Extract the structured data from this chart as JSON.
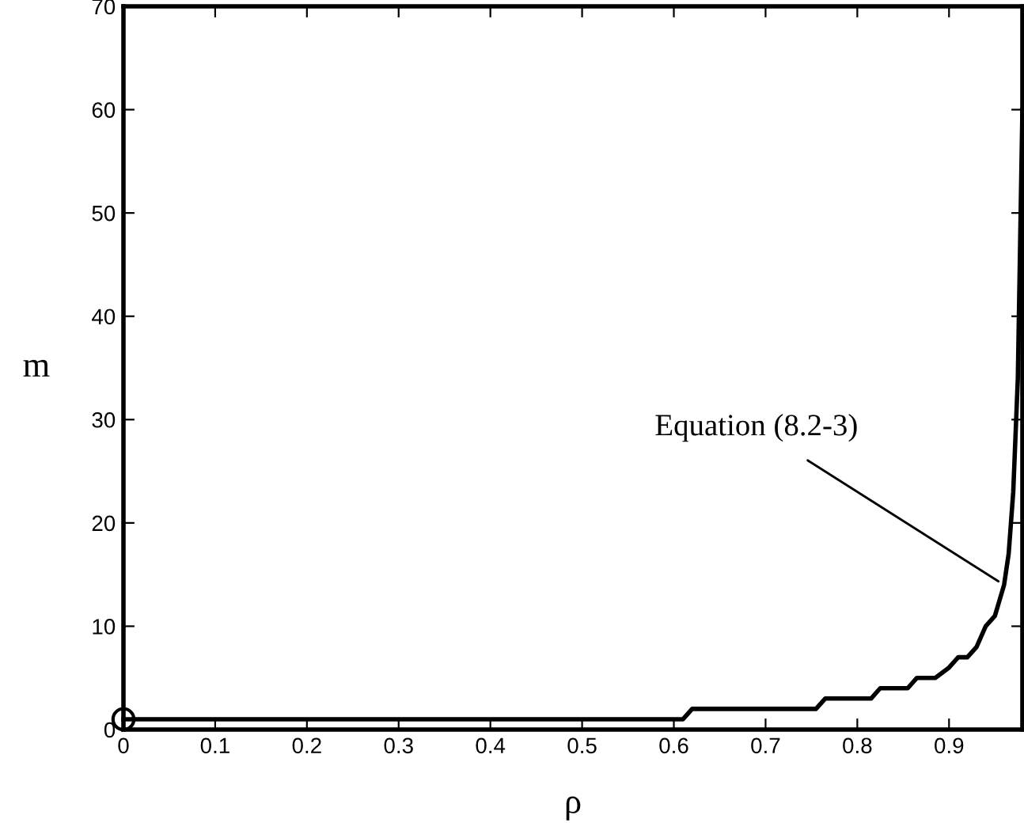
{
  "chart_data": {
    "type": "line",
    "xlabel": "ρ",
    "ylabel": "m",
    "xlim": [
      0,
      0.98
    ],
    "ylim": [
      0,
      70
    ],
    "xticks": [
      0,
      0.1,
      0.2,
      0.3,
      0.4,
      0.5,
      0.6,
      0.7,
      0.8,
      0.9
    ],
    "yticks": [
      0,
      10,
      20,
      30,
      40,
      50,
      60,
      70
    ],
    "grid": false,
    "legend": false,
    "series": [
      {
        "color": "#000000",
        "line_style": "solid",
        "x": [
          0,
          0.61,
          0.62,
          0.755,
          0.765,
          0.815,
          0.825,
          0.855,
          0.865,
          0.885,
          0.9,
          0.91,
          0.92,
          0.93,
          0.94,
          0.95,
          0.96,
          0.965,
          0.97,
          0.975,
          0.98
        ],
        "values": [
          1,
          1,
          2,
          2,
          3,
          3,
          4,
          4,
          5,
          5,
          6,
          7,
          7,
          8,
          10,
          11,
          14,
          17,
          23,
          34,
          60
        ]
      },
      {
        "type": "scatter",
        "color": "#000000",
        "marker": "circle",
        "x": [
          0
        ],
        "values": [
          1
        ]
      }
    ],
    "annotations": [
      {
        "text": "Equation (8.2-3)",
        "x": 0.96,
        "y": 14
      }
    ]
  }
}
